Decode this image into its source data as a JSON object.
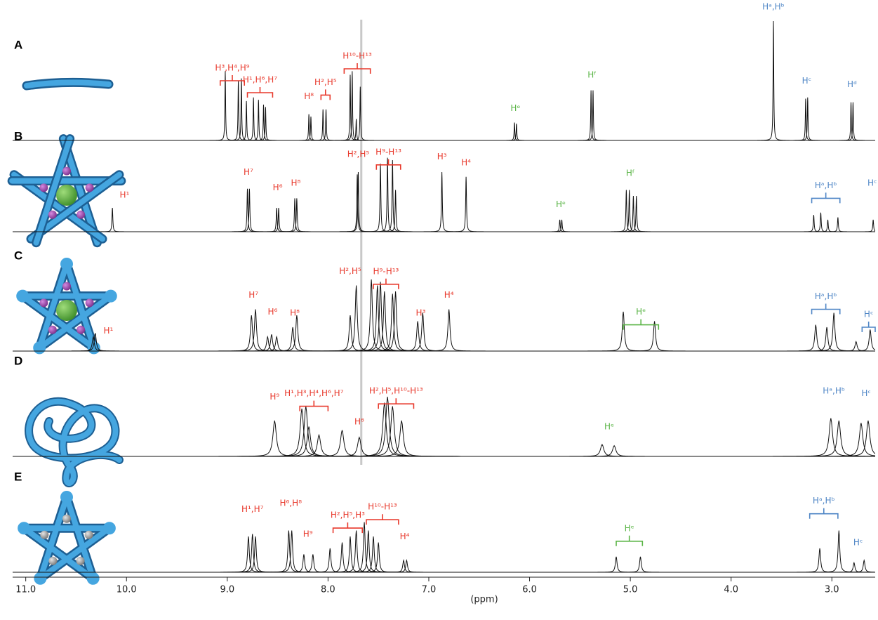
{
  "chart_data": {
    "type": "spectrum",
    "xlabel": "(ppm)",
    "xlim": [
      11.13,
      2.57
    ],
    "xticks": [
      {
        "value": 11,
        "label": "11.0"
      },
      {
        "value": 10,
        "label": "10.0"
      },
      {
        "value": 9,
        "label": "9.0"
      },
      {
        "value": 8,
        "label": "8.0"
      },
      {
        "value": 7,
        "label": "7.0"
      },
      {
        "value": 6,
        "label": "6.0"
      },
      {
        "value": 5,
        "label": "5.0"
      },
      {
        "value": 4,
        "label": "4.0"
      },
      {
        "value": 3,
        "label": "3.0"
      }
    ],
    "reference_line": 7.67,
    "line_color": "#111111",
    "spectra": [
      {
        "label": "A",
        "linewidth": 0.004,
        "x": [
          9.02,
          8.89,
          8.86,
          8.81,
          8.74,
          8.69,
          8.64,
          8.62,
          8.19,
          8.17,
          8.05,
          8.02,
          7.78,
          7.76,
          7.72,
          7.68,
          6.15,
          6.13,
          5.39,
          5.37,
          3.58,
          3.26,
          3.24,
          2.81,
          2.79
        ],
        "h": [
          0.58,
          0.5,
          0.52,
          0.33,
          0.36,
          0.34,
          0.3,
          0.28,
          0.22,
          0.2,
          0.26,
          0.26,
          0.55,
          0.58,
          0.18,
          0.45,
          0.15,
          0.14,
          0.42,
          0.42,
          1.0,
          0.35,
          0.36,
          0.32,
          0.32
        ],
        "annotations": [
          {
            "text": "H³,H⁴,H⁹",
            "span": [
              9.07,
              8.83
            ],
            "h": 0.5,
            "color": "#e8392c"
          },
          {
            "text": "H¹,H⁶,H⁷",
            "span": [
              8.8,
              8.55
            ],
            "h": 0.4,
            "color": "#e8392c"
          },
          {
            "text": "H⁸",
            "x": 8.19,
            "h": 0.32,
            "color": "#e8392c"
          },
          {
            "text": "H²,H⁵",
            "span": [
              8.07,
              7.98
            ],
            "h": 0.38,
            "color": "#e8392c"
          },
          {
            "text": "H¹⁰-H¹³",
            "span": [
              7.84,
              7.58
            ],
            "h": 0.6,
            "color": "#e8392c"
          },
          {
            "text": "Hᵉ",
            "x": 6.14,
            "h": 0.22,
            "color": "#5bb547"
          },
          {
            "text": "Hᶠ",
            "x": 5.38,
            "h": 0.5,
            "color": "#5bb547"
          },
          {
            "text": "Hᵃ,Hᵇ",
            "x": 3.58,
            "h": 1.07,
            "color": "#4f86c6"
          },
          {
            "text": "Hᶜ",
            "x": 3.25,
            "h": 0.45,
            "color": "#4f86c6"
          },
          {
            "text": "Hᵈ",
            "x": 2.8,
            "h": 0.42,
            "color": "#4f86c6"
          }
        ]
      },
      {
        "label": "B",
        "linewidth": 0.005,
        "x": [
          10.14,
          8.8,
          8.78,
          8.51,
          8.49,
          8.33,
          8.31,
          7.71,
          7.7,
          7.48,
          7.41,
          7.36,
          7.33,
          6.87,
          6.63,
          5.7,
          5.68,
          5.04,
          5.01,
          4.97,
          4.94,
          3.18,
          3.11,
          3.04,
          2.94,
          2.59
        ],
        "h": [
          0.2,
          0.36,
          0.36,
          0.2,
          0.2,
          0.28,
          0.28,
          0.48,
          0.5,
          0.57,
          0.62,
          0.6,
          0.35,
          0.5,
          0.46,
          0.1,
          0.1,
          0.35,
          0.35,
          0.3,
          0.3,
          0.14,
          0.16,
          0.1,
          0.12,
          0.1
        ],
        "annotations": [
          {
            "text": "H¹",
            "x": 10.02,
            "h": 0.26,
            "color": "#e8392c"
          },
          {
            "text": "H⁷",
            "x": 8.79,
            "h": 0.45,
            "color": "#e8392c"
          },
          {
            "text": "H⁶",
            "x": 8.5,
            "h": 0.32,
            "color": "#e8392c"
          },
          {
            "text": "H⁸",
            "x": 8.32,
            "h": 0.36,
            "color": "#e8392c"
          },
          {
            "text": "H²,H⁵",
            "x": 7.7,
            "h": 0.6,
            "color": "#e8392c"
          },
          {
            "text": "H⁹-H¹³",
            "span": [
              7.52,
              7.28
            ],
            "h": 0.56,
            "color": "#e8392c"
          },
          {
            "text": "H³",
            "x": 6.87,
            "h": 0.58,
            "color": "#e8392c"
          },
          {
            "text": "H⁴",
            "x": 6.63,
            "h": 0.53,
            "color": "#e8392c"
          },
          {
            "text": "Hᵉ",
            "x": 5.69,
            "h": 0.18,
            "color": "#5bb547"
          },
          {
            "text": "Hᶠ",
            "x": 5.0,
            "h": 0.44,
            "color": "#5bb547"
          },
          {
            "text": "Hᵃ,Hᵇ",
            "span": [
              3.2,
              2.92
            ],
            "h": 0.28,
            "color": "#4f86c6"
          },
          {
            "text": "Hᶜ",
            "x": 2.6,
            "h": 0.36,
            "color": "#4f86c6"
          }
        ]
      },
      {
        "label": "C",
        "linewidth": 0.012,
        "x": [
          10.33,
          10.31,
          8.76,
          8.72,
          8.6,
          8.56,
          8.51,
          8.35,
          8.31,
          7.78,
          7.72,
          7.57,
          7.51,
          7.48,
          7.44,
          7.36,
          7.33,
          7.11,
          7.06,
          6.8,
          5.07,
          4.76,
          3.16,
          3.05,
          2.98,
          2.76,
          2.62
        ],
        "h": [
          0.12,
          0.15,
          0.3,
          0.35,
          0.12,
          0.14,
          0.12,
          0.2,
          0.3,
          0.3,
          0.55,
          0.6,
          0.55,
          0.58,
          0.5,
          0.48,
          0.5,
          0.25,
          0.32,
          0.35,
          0.33,
          0.25,
          0.22,
          0.2,
          0.32,
          0.08,
          0.18
        ],
        "annotations": [
          {
            "text": "H¹",
            "x": 10.18,
            "h": 0.12,
            "color": "#e8392c"
          },
          {
            "text": "H⁷",
            "x": 8.74,
            "h": 0.42,
            "color": "#e8392c"
          },
          {
            "text": "H⁶",
            "x": 8.55,
            "h": 0.28,
            "color": "#e8392c"
          },
          {
            "text": "H⁸",
            "x": 8.33,
            "h": 0.27,
            "color": "#e8392c"
          },
          {
            "text": "H²,H⁵",
            "x": 7.78,
            "h": 0.62,
            "color": "#e8392c"
          },
          {
            "text": "H⁹-H¹³",
            "span": [
              7.55,
              7.3
            ],
            "h": 0.56,
            "color": "#e8392c"
          },
          {
            "text": "H³",
            "x": 7.08,
            "h": 0.27,
            "color": "#e8392c"
          },
          {
            "text": "H⁴",
            "x": 6.8,
            "h": 0.42,
            "color": "#e8392c"
          },
          {
            "text": "Hᵉ",
            "span": [
              5.07,
              4.72
            ],
            "h": 0.22,
            "color": "#5bb547"
          },
          {
            "text": "Hᵃ,Hᵇ",
            "span": [
              3.2,
              2.92
            ],
            "h": 0.35,
            "color": "#4f86c6"
          },
          {
            "text": "Hᶜ",
            "span": [
              2.7,
              2.57
            ],
            "h": 0.2,
            "color": "#4f86c6"
          }
        ]
      },
      {
        "label": "D",
        "linewidth": 0.02,
        "x": [
          8.53,
          8.26,
          8.22,
          8.19,
          8.09,
          7.86,
          7.69,
          7.44,
          7.41,
          7.36,
          7.27,
          5.28,
          5.16,
          3.01,
          2.93,
          2.71,
          2.64
        ],
        "h": [
          0.3,
          0.4,
          0.42,
          0.25,
          0.18,
          0.22,
          0.16,
          0.45,
          0.5,
          0.42,
          0.3,
          0.1,
          0.09,
          0.32,
          0.3,
          0.28,
          0.3
        ],
        "annotations": [
          {
            "text": "H⁹",
            "x": 8.53,
            "h": 0.45,
            "color": "#e8392c"
          },
          {
            "text": "H¹,H³,H⁴,H⁶,H⁷",
            "span": [
              8.28,
              8.0
            ],
            "h": 0.42,
            "color": "#e8392c"
          },
          {
            "text": "H⁸",
            "x": 7.69,
            "h": 0.24,
            "color": "#e8392c"
          },
          {
            "text": "H²,H⁵,H¹⁰-H¹³",
            "span": [
              7.5,
              7.15
            ],
            "h": 0.44,
            "color": "#e8392c"
          },
          {
            "text": "Hᵉ",
            "x": 5.21,
            "h": 0.2,
            "color": "#5bb547"
          },
          {
            "text": "Hᵃ,Hᵇ",
            "x": 2.98,
            "h": 0.5,
            "color": "#4f86c6"
          },
          {
            "text": "Hᶜ",
            "x": 2.66,
            "h": 0.48,
            "color": "#4f86c6"
          }
        ]
      },
      {
        "label": "E",
        "linewidth": 0.01,
        "x": [
          8.79,
          8.75,
          8.72,
          8.39,
          8.36,
          8.24,
          8.15,
          7.98,
          7.86,
          7.78,
          7.72,
          7.64,
          7.6,
          7.55,
          7.5,
          7.25,
          7.22,
          5.14,
          4.9,
          3.12,
          2.93,
          2.78,
          2.68
        ],
        "h": [
          0.3,
          0.32,
          0.3,
          0.35,
          0.35,
          0.15,
          0.15,
          0.2,
          0.25,
          0.3,
          0.35,
          0.42,
          0.35,
          0.3,
          0.25,
          0.1,
          0.1,
          0.13,
          0.13,
          0.2,
          0.35,
          0.08,
          0.1
        ],
        "annotations": [
          {
            "text": "H¹,H⁷",
            "x": 8.75,
            "h": 0.48,
            "color": "#e8392c"
          },
          {
            "text": "H⁶,H⁸",
            "x": 8.37,
            "h": 0.53,
            "color": "#e8392c"
          },
          {
            "text": "H⁹",
            "x": 8.2,
            "h": 0.27,
            "color": "#e8392c"
          },
          {
            "text": "H²,H⁵,H³",
            "span": [
              7.95,
              7.66
            ],
            "h": 0.37,
            "color": "#e8392c"
          },
          {
            "text": "H¹⁰-H¹³",
            "span": [
              7.62,
              7.3
            ],
            "h": 0.44,
            "color": "#e8392c"
          },
          {
            "text": "H⁴",
            "x": 7.24,
            "h": 0.25,
            "color": "#e8392c"
          },
          {
            "text": "Hᵉ",
            "span": [
              5.14,
              4.88
            ],
            "h": 0.26,
            "color": "#5bb547"
          },
          {
            "text": "Hᵃ,Hᵇ",
            "span": [
              3.22,
              2.94
            ],
            "h": 0.49,
            "color": "#4f86c6"
          },
          {
            "text": "Hᶜ",
            "x": 2.74,
            "h": 0.2,
            "color": "#4f86c6"
          }
        ]
      }
    ]
  }
}
